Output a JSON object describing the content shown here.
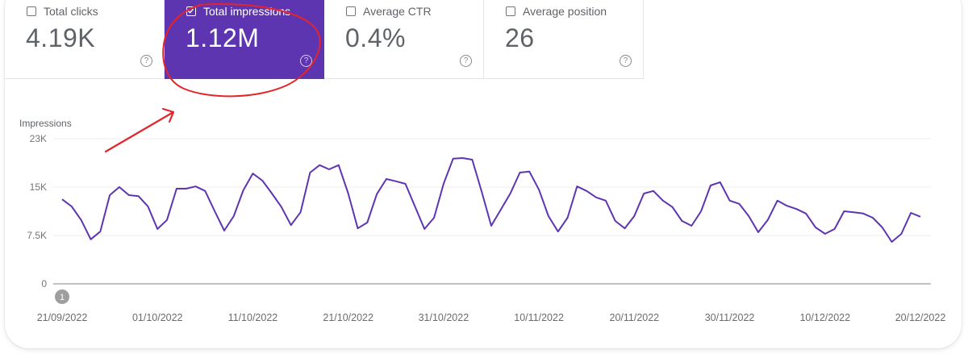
{
  "metrics": [
    {
      "label": "Total clicks",
      "value": "4.19K",
      "checked": false,
      "help_icon": "question-circle-icon",
      "help_glyph": "?"
    },
    {
      "label": "Total impressions",
      "value": "1.12M",
      "checked": true,
      "help_icon": "question-circle-icon",
      "help_glyph": "?"
    },
    {
      "label": "Average CTR",
      "value": "0.4%",
      "checked": false,
      "help_icon": "question-circle-icon",
      "help_glyph": "?"
    },
    {
      "label": "Average position",
      "value": "26",
      "checked": false,
      "help_icon": "question-circle-icon",
      "help_glyph": "?"
    }
  ],
  "colors": {
    "accent": "#5e35b1",
    "line": "#5e35b1",
    "annotation": "#e3242b",
    "grid": "#eeeeee",
    "baseline": "#9e9e9e",
    "marker": "#9e9e9e"
  },
  "annotation_marker": {
    "label": "1"
  },
  "chart_data": {
    "type": "line",
    "title": "",
    "ylabel": "Impressions",
    "xlabel": "",
    "ylim": [
      0,
      22500
    ],
    "y_ticks": [
      {
        "value": 0,
        "label": "0"
      },
      {
        "value": 7500,
        "label": "7.5K"
      },
      {
        "value": 15000,
        "label": "15K"
      },
      {
        "value": 22500,
        "label": "23K"
      }
    ],
    "x_start": "21/09/2022",
    "x_end": "20/12/2022",
    "x_ticks": [
      {
        "day": 0,
        "label": "21/09/2022"
      },
      {
        "day": 10,
        "label": "01/10/2022"
      },
      {
        "day": 20,
        "label": "11/10/2022"
      },
      {
        "day": 30,
        "label": "21/10/2022"
      },
      {
        "day": 40,
        "label": "31/10/2022"
      },
      {
        "day": 50,
        "label": "10/11/2022"
      },
      {
        "day": 60,
        "label": "20/11/2022"
      },
      {
        "day": 70,
        "label": "30/11/2022"
      },
      {
        "day": 80,
        "label": "10/12/2022"
      },
      {
        "day": 90,
        "label": "20/12/2022"
      }
    ],
    "grid": true,
    "series": [
      {
        "name": "Impressions",
        "values": [
          13100,
          12000,
          9900,
          6900,
          8100,
          13750,
          15000,
          13750,
          13600,
          12000,
          8500,
          9900,
          14750,
          14750,
          15100,
          14400,
          11250,
          8250,
          10500,
          14500,
          17100,
          16000,
          14000,
          11900,
          9100,
          11100,
          17250,
          18400,
          17750,
          18400,
          14000,
          8600,
          9500,
          13900,
          16250,
          15900,
          15500,
          12000,
          8500,
          10250,
          15500,
          19400,
          19500,
          19250,
          14250,
          9000,
          11500,
          14000,
          17250,
          17400,
          14600,
          10500,
          8100,
          10250,
          15100,
          14400,
          13400,
          12900,
          9750,
          8600,
          10500,
          14000,
          14400,
          12900,
          11900,
          9750,
          9000,
          11250,
          15250,
          15750,
          12900,
          12400,
          10500,
          8000,
          9900,
          12900,
          12100,
          11600,
          10900,
          8750,
          7750,
          8500,
          11250,
          11100,
          10900,
          10250,
          8750,
          6500,
          7750,
          11000,
          10400
        ]
      }
    ]
  }
}
